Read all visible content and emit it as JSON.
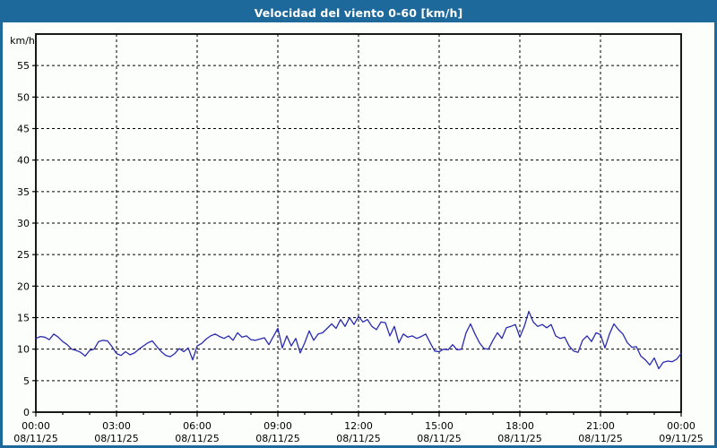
{
  "title": "Velocidad del viento 0-60 [km/h]",
  "colors": {
    "header": "#1e699c",
    "page_border": "#1e699c",
    "background": "#fcfefc",
    "grid": "#000000",
    "axis": "#000000",
    "line": "#2a2aad",
    "title_text": "#ffffff",
    "label_text": "#000000"
  },
  "chart_data": {
    "type": "line",
    "title": "Velocidad del viento 0-60 [km/h]",
    "xlabel": "",
    "ylabel": "km/h",
    "ylim": [
      0,
      60
    ],
    "yticks": [
      0,
      5,
      10,
      15,
      20,
      25,
      30,
      35,
      40,
      45,
      50,
      55
    ],
    "grid": "dashed",
    "legend": "none",
    "x_total_hours": 24,
    "xtick_interval_hours": 3,
    "x_minor_tick_hours": 1,
    "xticks": [
      {
        "time": "00:00",
        "date": "08/11/25"
      },
      {
        "time": "03:00",
        "date": "08/11/25"
      },
      {
        "time": "06:00",
        "date": "08/11/25"
      },
      {
        "time": "09:00",
        "date": "08/11/25"
      },
      {
        "time": "12:00",
        "date": "08/11/25"
      },
      {
        "time": "15:00",
        "date": "08/11/25"
      },
      {
        "time": "18:00",
        "date": "08/11/25"
      },
      {
        "time": "21:00",
        "date": "08/11/25"
      },
      {
        "time": "00:00",
        "date": "09/11/25"
      }
    ],
    "series": [
      {
        "name": "Velocidad del viento",
        "color": "#2a2aad",
        "sample_interval_minutes": 10,
        "values": [
          11.7,
          12.0,
          11.9,
          11.5,
          12.4,
          11.9,
          11.2,
          10.7,
          10.0,
          9.8,
          9.5,
          8.9,
          9.8,
          10.0,
          11.2,
          11.4,
          11.3,
          10.4,
          9.3,
          9.0,
          9.6,
          9.1,
          9.4,
          10.0,
          10.5,
          11.0,
          11.3,
          10.4,
          9.6,
          9.0,
          8.8,
          9.3,
          10.1,
          9.6,
          10.2,
          8.3,
          10.5,
          10.9,
          11.6,
          12.1,
          12.4,
          12.0,
          11.7,
          12.1,
          11.4,
          12.6,
          11.9,
          12.1,
          11.5,
          11.4,
          11.6,
          11.8,
          10.7,
          12.0,
          13.3,
          10.2,
          12.1,
          10.5,
          11.7,
          9.4,
          11.0,
          12.9,
          11.4,
          12.4,
          12.6,
          13.3,
          14.0,
          13.3,
          14.7,
          13.6,
          15.0,
          13.9,
          15.2,
          14.3,
          14.7,
          13.6,
          13.1,
          14.3,
          14.2,
          12.1,
          13.6,
          11.0,
          12.4,
          11.9,
          12.1,
          11.7,
          12.0,
          12.4,
          11.0,
          9.7,
          9.6,
          10.0,
          9.9,
          10.7,
          9.9,
          10.0,
          12.6,
          14.0,
          12.4,
          11.0,
          10.1,
          10.0,
          11.4,
          12.6,
          11.7,
          13.4,
          13.6,
          13.9,
          11.9,
          13.6,
          16.0,
          14.3,
          13.6,
          13.9,
          13.4,
          13.9,
          12.1,
          11.7,
          11.9,
          10.5,
          9.7,
          9.5,
          11.4,
          12.1,
          11.2,
          12.6,
          12.3,
          10.2,
          12.4,
          14.0,
          13.1,
          12.4,
          11.0,
          10.3,
          10.4,
          8.9,
          8.3,
          7.5,
          8.6,
          6.9,
          7.9,
          8.1,
          8.0,
          8.4,
          9.3
        ]
      }
    ]
  }
}
